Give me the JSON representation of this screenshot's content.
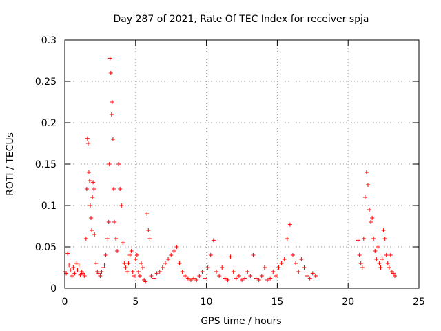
{
  "chart_data": {
    "type": "scatter",
    "title": "Day 287 of 2021, Rate Of TEC Index for receiver spja",
    "xlabel": "GPS time / hours",
    "ylabel": "ROTI / TECUs",
    "xlim": [
      0,
      25
    ],
    "ylim": [
      0,
      0.3
    ],
    "x_ticks": [
      "0",
      "5",
      "10",
      "15",
      "20",
      "25"
    ],
    "y_ticks": [
      "0",
      "0.05",
      "0.1",
      "0.15",
      "0.2",
      "0.25",
      "0.3"
    ],
    "grid": true,
    "marker": "+",
    "series_color": "#ff0000",
    "series": [
      {
        "x": [
          0.0,
          0.1,
          0.2,
          0.3,
          0.4,
          0.5,
          0.6,
          0.7,
          0.8,
          0.9,
          1.0,
          1.1,
          1.2,
          1.3,
          1.4,
          1.5,
          1.55,
          1.6,
          1.65,
          1.7,
          1.75,
          1.8,
          1.85,
          1.9,
          1.95,
          2.0,
          2.05,
          2.1,
          2.2,
          2.3,
          2.4,
          2.5,
          2.6,
          2.7,
          2.8,
          2.9,
          3.0,
          3.1,
          3.15,
          3.2,
          3.25,
          3.3,
          3.35,
          3.4,
          3.45,
          3.5,
          3.6,
          3.7,
          3.8,
          3.9,
          4.0,
          4.1,
          4.2,
          4.3,
          4.4,
          4.5,
          4.6,
          4.7,
          4.8,
          4.9,
          5.0,
          5.1,
          5.2,
          5.3,
          5.4,
          5.5,
          5.6,
          5.7,
          5.8,
          5.9,
          6.0,
          6.1,
          6.3,
          6.5,
          6.7,
          6.9,
          7.1,
          7.3,
          7.5,
          7.7,
          7.9,
          8.1,
          8.3,
          8.5,
          8.7,
          8.9,
          9.1,
          9.3,
          9.5,
          9.7,
          9.9,
          10.1,
          10.3,
          10.5,
          10.7,
          10.9,
          11.1,
          11.3,
          11.5,
          11.7,
          11.9,
          12.1,
          12.3,
          12.5,
          12.7,
          12.9,
          13.1,
          13.3,
          13.5,
          13.7,
          13.9,
          14.1,
          14.3,
          14.5,
          14.7,
          14.9,
          15.1,
          15.3,
          15.5,
          15.7,
          15.9,
          16.1,
          16.3,
          16.5,
          16.7,
          16.9,
          17.1,
          17.3,
          17.5,
          17.7,
          20.7,
          20.8,
          20.9,
          21.0,
          21.1,
          21.2,
          21.3,
          21.4,
          21.5,
          21.6,
          21.7,
          21.8,
          21.9,
          22.0,
          22.1,
          22.2,
          22.3,
          22.4,
          22.5,
          22.6,
          22.7,
          22.8,
          22.9,
          23.0,
          23.1,
          23.2,
          23.3
        ],
        "y": [
          0.02,
          0.018,
          0.042,
          0.028,
          0.022,
          0.015,
          0.025,
          0.018,
          0.03,
          0.022,
          0.028,
          0.016,
          0.02,
          0.018,
          0.015,
          0.06,
          0.12,
          0.181,
          0.175,
          0.14,
          0.13,
          0.1,
          0.085,
          0.07,
          0.11,
          0.128,
          0.12,
          0.065,
          0.03,
          0.02,
          0.018,
          0.015,
          0.02,
          0.025,
          0.028,
          0.04,
          0.06,
          0.08,
          0.15,
          0.278,
          0.26,
          0.21,
          0.225,
          0.18,
          0.12,
          0.08,
          0.06,
          0.045,
          0.15,
          0.12,
          0.1,
          0.055,
          0.03,
          0.025,
          0.02,
          0.03,
          0.04,
          0.045,
          0.02,
          0.015,
          0.035,
          0.04,
          0.02,
          0.015,
          0.03,
          0.025,
          0.01,
          0.008,
          0.09,
          0.07,
          0.06,
          0.015,
          0.012,
          0.018,
          0.02,
          0.025,
          0.03,
          0.035,
          0.04,
          0.045,
          0.05,
          0.03,
          0.02,
          0.015,
          0.012,
          0.01,
          0.012,
          0.01,
          0.015,
          0.02,
          0.012,
          0.025,
          0.04,
          0.058,
          0.02,
          0.015,
          0.025,
          0.012,
          0.01,
          0.038,
          0.02,
          0.012,
          0.015,
          0.01,
          0.012,
          0.02,
          0.015,
          0.04,
          0.012,
          0.01,
          0.015,
          0.025,
          0.01,
          0.012,
          0.02,
          0.015,
          0.025,
          0.03,
          0.035,
          0.06,
          0.077,
          0.04,
          0.03,
          0.02,
          0.035,
          0.025,
          0.015,
          0.012,
          0.018,
          0.015,
          0.058,
          0.04,
          0.03,
          0.025,
          0.06,
          0.11,
          0.14,
          0.125,
          0.095,
          0.08,
          0.085,
          0.06,
          0.045,
          0.035,
          0.05,
          0.03,
          0.025,
          0.035,
          0.07,
          0.06,
          0.04,
          0.03,
          0.025,
          0.04,
          0.02,
          0.018,
          0.015
        ]
      }
    ]
  }
}
